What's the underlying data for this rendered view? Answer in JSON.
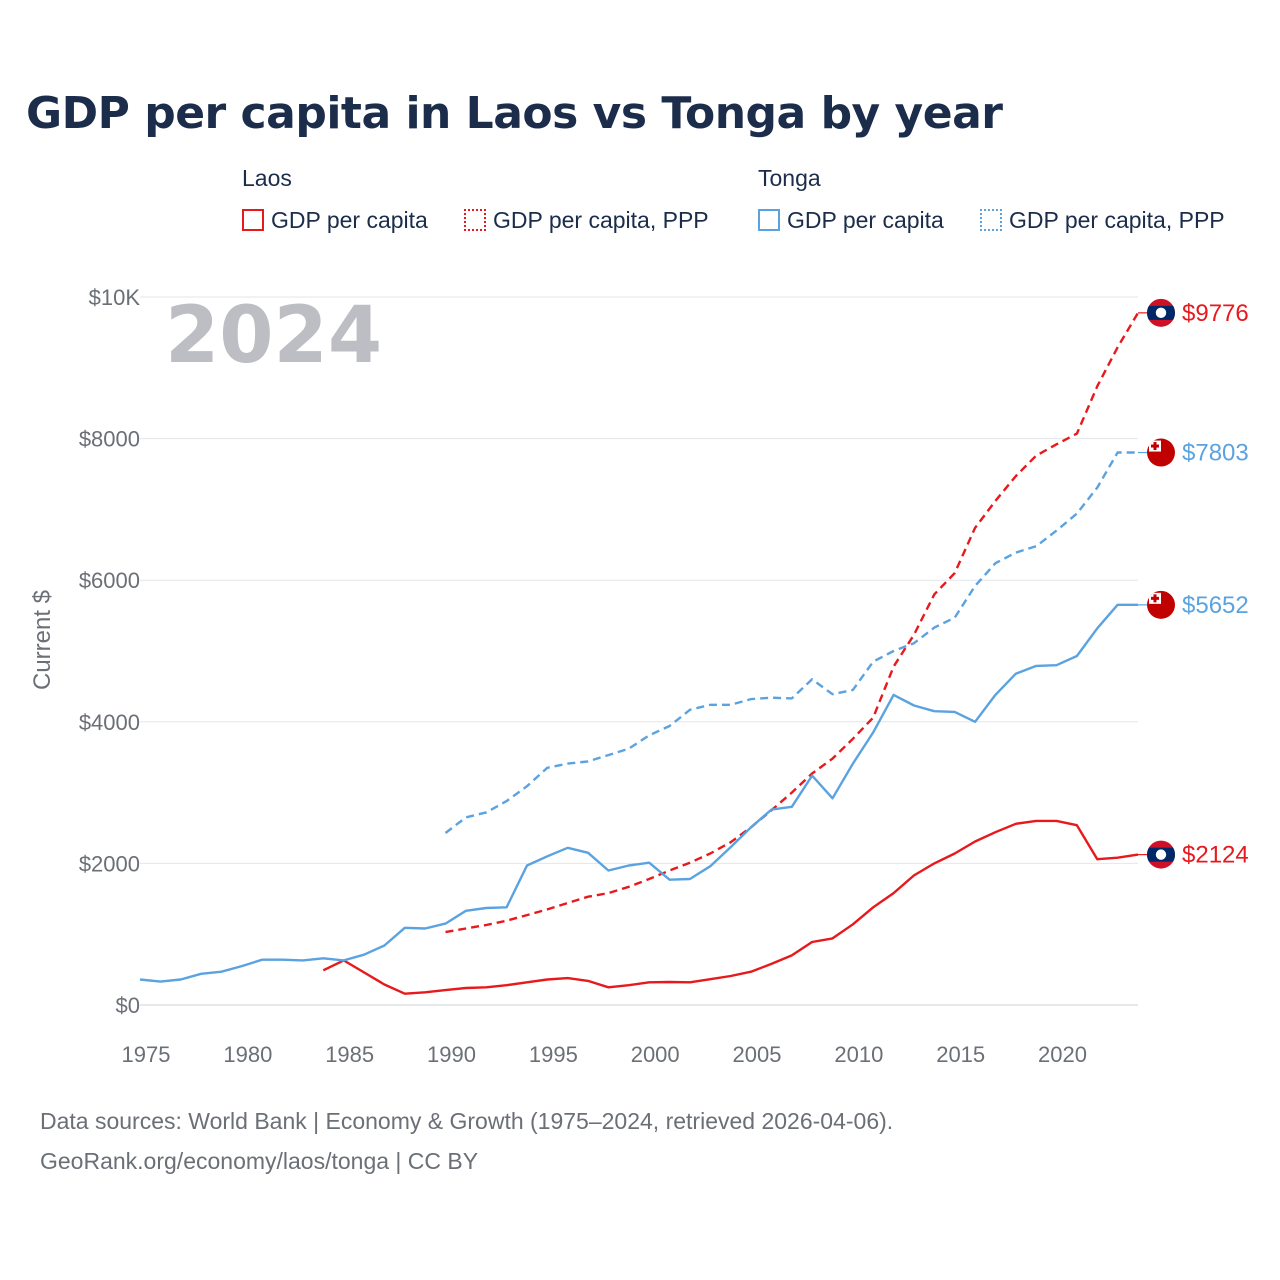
{
  "title": "GDP per capita in Laos vs Tonga by year",
  "legend": {
    "groups": [
      {
        "name": "Laos",
        "items": [
          {
            "label": "GDP per capita",
            "style": "solid",
            "color": "#e8191c"
          },
          {
            "label": "GDP per capita, PPP",
            "style": "dotted",
            "color": "#e8191c"
          }
        ]
      },
      {
        "name": "Tonga",
        "items": [
          {
            "label": "GDP per capita",
            "style": "solid",
            "color": "#5ba3e0"
          },
          {
            "label": "GDP per capita, PPP",
            "style": "dotted",
            "color": "#5ba3e0"
          }
        ]
      }
    ]
  },
  "year_watermark": "2024",
  "end_labels": [
    "$9776",
    "$7803",
    "$5652",
    "$2124"
  ],
  "source_lines": [
    "Data sources: World Bank | Economy & Growth (1975–2024, retrieved 2026-04-06).",
    "GeoRank.org/economy/laos/tonga | CC BY"
  ],
  "chart_data": {
    "type": "line",
    "title": "GDP per capita in Laos vs Tonga by year",
    "xlabel": "",
    "ylabel": "Current $",
    "xlim": [
      1975,
      2024
    ],
    "ylim": [
      0,
      10000
    ],
    "x_ticks": [
      1975,
      1980,
      1985,
      1990,
      1995,
      2000,
      2005,
      2010,
      2015,
      2020
    ],
    "x_tick_labels": [
      "1975",
      "1980",
      "1985",
      "1990",
      "1995",
      "2000",
      "2005",
      "2010",
      "2015",
      "2020"
    ],
    "y_ticks": [
      0,
      2000,
      4000,
      6000,
      8000,
      10000
    ],
    "y_tick_labels": [
      "$0",
      "$2000",
      "$4000",
      "$6000",
      "$8000",
      "$10K"
    ],
    "grid": true,
    "series": [
      {
        "name": "Laos GDP per capita",
        "country": "Laos",
        "color": "#e8191c",
        "dash": "solid",
        "end_label": "$2124",
        "flag": "laos-flag",
        "points": [
          [
            1984,
            490
          ],
          [
            1985,
            630
          ],
          [
            1986,
            460
          ],
          [
            1987,
            290
          ],
          [
            1988,
            160
          ],
          [
            1989,
            180
          ],
          [
            1990,
            210
          ],
          [
            1991,
            240
          ],
          [
            1992,
            250
          ],
          [
            1993,
            280
          ],
          [
            1994,
            320
          ],
          [
            1995,
            360
          ],
          [
            1996,
            380
          ],
          [
            1997,
            340
          ],
          [
            1998,
            250
          ],
          [
            1999,
            280
          ],
          [
            2000,
            320
          ],
          [
            2001,
            325
          ],
          [
            2002,
            320
          ],
          [
            2003,
            365
          ],
          [
            2004,
            410
          ],
          [
            2005,
            470
          ],
          [
            2006,
            580
          ],
          [
            2007,
            700
          ],
          [
            2008,
            890
          ],
          [
            2009,
            940
          ],
          [
            2010,
            1140
          ],
          [
            2011,
            1380
          ],
          [
            2012,
            1580
          ],
          [
            2013,
            1830
          ],
          [
            2014,
            2000
          ],
          [
            2015,
            2140
          ],
          [
            2016,
            2310
          ],
          [
            2017,
            2440
          ],
          [
            2018,
            2560
          ],
          [
            2019,
            2600
          ],
          [
            2020,
            2600
          ],
          [
            2021,
            2540
          ],
          [
            2022,
            2060
          ],
          [
            2023,
            2080
          ],
          [
            2024,
            2124
          ]
        ]
      },
      {
        "name": "Laos GDP per capita, PPP",
        "country": "Laos",
        "color": "#e8191c",
        "dash": "dashed",
        "end_label": "$9776",
        "flag": "laos-flag",
        "points": [
          [
            1990,
            1030
          ],
          [
            1991,
            1080
          ],
          [
            1992,
            1130
          ],
          [
            1993,
            1190
          ],
          [
            1994,
            1270
          ],
          [
            1995,
            1350
          ],
          [
            1996,
            1440
          ],
          [
            1997,
            1530
          ],
          [
            1998,
            1580
          ],
          [
            1999,
            1670
          ],
          [
            2000,
            1780
          ],
          [
            2001,
            1900
          ],
          [
            2002,
            2010
          ],
          [
            2003,
            2140
          ],
          [
            2004,
            2300
          ],
          [
            2005,
            2510
          ],
          [
            2006,
            2750
          ],
          [
            2007,
            3000
          ],
          [
            2008,
            3270
          ],
          [
            2009,
            3480
          ],
          [
            2010,
            3760
          ],
          [
            2011,
            4060
          ],
          [
            2012,
            4780
          ],
          [
            2013,
            5230
          ],
          [
            2014,
            5800
          ],
          [
            2015,
            6100
          ],
          [
            2016,
            6740
          ],
          [
            2017,
            7120
          ],
          [
            2018,
            7470
          ],
          [
            2019,
            7760
          ],
          [
            2020,
            7920
          ],
          [
            2021,
            8070
          ],
          [
            2022,
            8740
          ],
          [
            2023,
            9290
          ],
          [
            2024,
            9776
          ]
        ]
      },
      {
        "name": "Tonga GDP per capita",
        "country": "Tonga",
        "color": "#5ba3e0",
        "dash": "solid",
        "end_label": "$5652",
        "flag": "tonga-flag",
        "points": [
          [
            1975,
            360
          ],
          [
            1976,
            330
          ],
          [
            1977,
            360
          ],
          [
            1978,
            440
          ],
          [
            1979,
            470
          ],
          [
            1980,
            550
          ],
          [
            1981,
            640
          ],
          [
            1982,
            640
          ],
          [
            1983,
            630
          ],
          [
            1984,
            660
          ],
          [
            1985,
            630
          ],
          [
            1986,
            710
          ],
          [
            1987,
            840
          ],
          [
            1988,
            1090
          ],
          [
            1989,
            1080
          ],
          [
            1990,
            1150
          ],
          [
            1991,
            1330
          ],
          [
            1992,
            1370
          ],
          [
            1993,
            1380
          ],
          [
            1994,
            1970
          ],
          [
            1995,
            2100
          ],
          [
            1996,
            2220
          ],
          [
            1997,
            2150
          ],
          [
            1998,
            1900
          ],
          [
            1999,
            1970
          ],
          [
            2000,
            2010
          ],
          [
            2001,
            1770
          ],
          [
            2002,
            1780
          ],
          [
            2003,
            1960
          ],
          [
            2004,
            2230
          ],
          [
            2005,
            2510
          ],
          [
            2006,
            2760
          ],
          [
            2007,
            2800
          ],
          [
            2008,
            3240
          ],
          [
            2009,
            2920
          ],
          [
            2010,
            3410
          ],
          [
            2011,
            3850
          ],
          [
            2012,
            4380
          ],
          [
            2013,
            4230
          ],
          [
            2014,
            4150
          ],
          [
            2015,
            4140
          ],
          [
            2016,
            4000
          ],
          [
            2017,
            4380
          ],
          [
            2018,
            4680
          ],
          [
            2019,
            4790
          ],
          [
            2020,
            4800
          ],
          [
            2021,
            4930
          ],
          [
            2022,
            5320
          ],
          [
            2023,
            5652
          ],
          [
            2024,
            5652
          ]
        ]
      },
      {
        "name": "Tonga GDP per capita, PPP",
        "country": "Tonga",
        "color": "#5ba3e0",
        "dash": "dashed",
        "end_label": "$7803",
        "flag": "tonga-flag",
        "points": [
          [
            1990,
            2430
          ],
          [
            1991,
            2650
          ],
          [
            1992,
            2720
          ],
          [
            1993,
            2880
          ],
          [
            1994,
            3090
          ],
          [
            1995,
            3350
          ],
          [
            1996,
            3410
          ],
          [
            1997,
            3440
          ],
          [
            1998,
            3530
          ],
          [
            1999,
            3620
          ],
          [
            2000,
            3810
          ],
          [
            2001,
            3940
          ],
          [
            2002,
            4170
          ],
          [
            2003,
            4240
          ],
          [
            2004,
            4240
          ],
          [
            2005,
            4320
          ],
          [
            2006,
            4340
          ],
          [
            2007,
            4330
          ],
          [
            2008,
            4600
          ],
          [
            2009,
            4390
          ],
          [
            2010,
            4450
          ],
          [
            2011,
            4850
          ],
          [
            2012,
            5000
          ],
          [
            2013,
            5110
          ],
          [
            2014,
            5330
          ],
          [
            2015,
            5470
          ],
          [
            2016,
            5920
          ],
          [
            2017,
            6240
          ],
          [
            2018,
            6390
          ],
          [
            2019,
            6480
          ],
          [
            2020,
            6700
          ],
          [
            2021,
            6940
          ],
          [
            2022,
            7310
          ],
          [
            2023,
            7803
          ],
          [
            2024,
            7803
          ]
        ]
      }
    ]
  }
}
